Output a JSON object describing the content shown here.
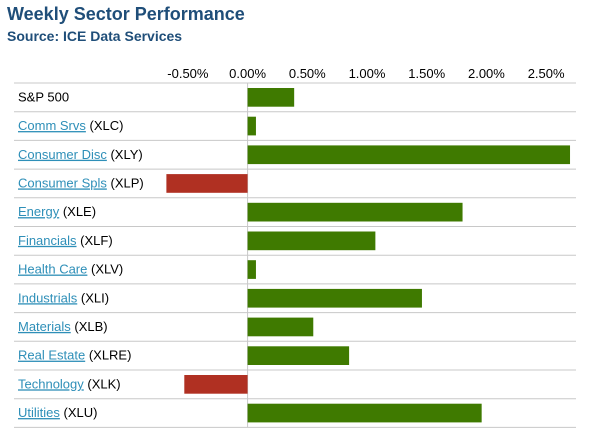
{
  "header": {
    "title": "Weekly Sector Performance",
    "subtitle": "Source: ICE Data Services"
  },
  "colors": {
    "positive": "#3f7a00",
    "negative": "#b03022",
    "link": "#2e8fb8",
    "title": "#1f4e79",
    "gridline": "#c8c8c8"
  },
  "chart_data": {
    "type": "bar",
    "orientation": "horizontal",
    "title": "Weekly Sector Performance",
    "subtitle": "Source: ICE Data Services",
    "xlim": [
      -0.7,
      2.75
    ],
    "x_ticks": [
      -0.5,
      0.0,
      0.5,
      1.0,
      1.5,
      2.0,
      2.5
    ],
    "x_tick_labels": [
      "-0.50%",
      "0.00%",
      "0.50%",
      "1.00%",
      "1.50%",
      "2.00%",
      "2.50%"
    ],
    "grid": "horizontal row separators",
    "categories": [
      {
        "link": "",
        "ticker": "S&P 500",
        "value": 0.39
      },
      {
        "link": "Comm Srvs",
        "ticker": "(XLC)",
        "value": 0.07
      },
      {
        "link": "Consumer Disc",
        "ticker": "(XLY)",
        "value": 2.7
      },
      {
        "link": "Consumer Spls",
        "ticker": "(XLP)",
        "value": -0.68
      },
      {
        "link": "Energy",
        "ticker": "(XLE)",
        "value": 1.8
      },
      {
        "link": "Financials",
        "ticker": "(XLF)",
        "value": 1.07
      },
      {
        "link": "Health Care",
        "ticker": "(XLV)",
        "value": 0.07
      },
      {
        "link": "Industrials",
        "ticker": "(XLI)",
        "value": 1.46
      },
      {
        "link": "Materials",
        "ticker": "(XLB)",
        "value": 0.55
      },
      {
        "link": "Real Estate",
        "ticker": "(XLRE)",
        "value": 0.85
      },
      {
        "link": "Technology",
        "ticker": "(XLK)",
        "value": -0.53
      },
      {
        "link": "Utilities",
        "ticker": "(XLU)",
        "value": 1.96
      }
    ]
  }
}
